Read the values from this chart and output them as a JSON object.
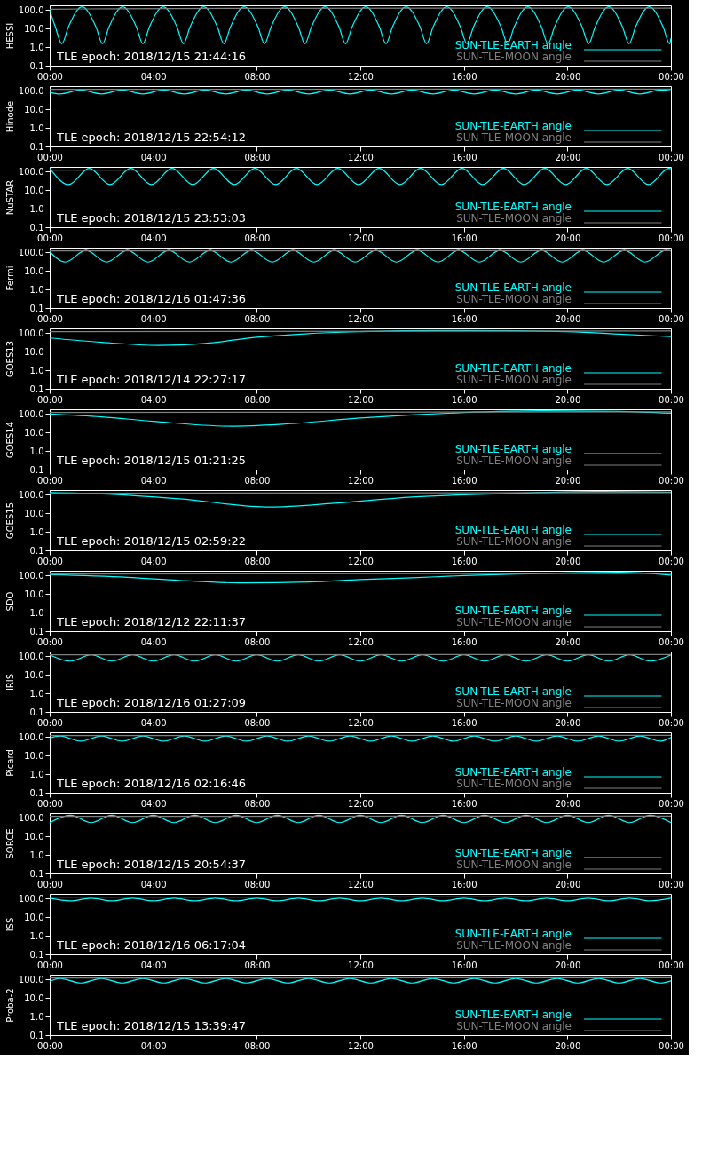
{
  "chart_data": [
    {
      "type": "line",
      "ylabel": "HESSI",
      "annotations": [
        "TLE epoch: 2018/12/15 21:44:16"
      ],
      "log": true,
      "grid": false,
      "legend": "bottom right",
      "xlim": [
        0,
        24
      ],
      "ylim": [
        0.1,
        180
      ],
      "xticks": [
        {
          "value": 0,
          "label": "00:00"
        },
        {
          "value": 4,
          "label": "04:00"
        },
        {
          "value": 8,
          "label": "08:00"
        },
        {
          "value": 12,
          "label": "12:00"
        },
        {
          "value": 16,
          "label": "16:00"
        },
        {
          "value": 20,
          "label": "20:00"
        },
        {
          "value": 24,
          "label": "00:00"
        }
      ],
      "yticks": [
        {
          "value": 0.1,
          "label": "0.1"
        },
        {
          "value": 1,
          "label": "1.0"
        },
        {
          "value": 10,
          "label": "10.0"
        },
        {
          "value": 100,
          "label": "100.0"
        }
      ],
      "x": [
        0,
        0.22,
        0.47,
        0.72,
        1.25,
        1.79,
        2.04,
        2.29,
        2.82,
        3.35,
        3.6,
        3.85,
        4.38,
        4.92,
        5.17,
        5.42,
        5.95,
        6.48,
        6.73,
        6.98,
        7.51,
        8.05,
        8.3,
        8.55,
        9.08,
        9.61,
        9.86,
        10.11,
        10.64,
        11.18,
        11.43,
        11.68,
        12.21,
        12.74,
        12.99,
        13.24,
        13.77,
        14.31,
        14.56,
        14.81,
        15.34,
        15.87,
        16.12,
        16.37,
        16.9,
        17.44,
        17.69,
        17.94,
        18.47,
        19.0,
        19.25,
        19.5,
        20.03,
        20.57,
        20.82,
        21.07,
        21.6,
        22.13,
        22.38,
        22.63,
        23.16,
        23.7,
        23.95,
        24
      ],
      "series": [
        {
          "name": "SUN-TLE-EARTH angle",
          "color": "#00ffff",
          "values": [
            100,
            12,
            1.5,
            12,
            150,
            12,
            1.5,
            12,
            150,
            12,
            1.5,
            12,
            150,
            12,
            1.5,
            12,
            150,
            12,
            1.5,
            12,
            150,
            12,
            1.5,
            12,
            150,
            12,
            1.5,
            12,
            150,
            12,
            1.5,
            12,
            150,
            12,
            1.5,
            12,
            150,
            12,
            1.5,
            12,
            150,
            12,
            1.5,
            12,
            150,
            12,
            1.5,
            12,
            150,
            12,
            1.5,
            12,
            150,
            12,
            1.5,
            12,
            150,
            12,
            1.5,
            12,
            150,
            12,
            1.5,
            3
          ]
        },
        {
          "name": "SUN-TLE-MOON angle",
          "color": "#808080",
          "x": [
            0,
            2.5,
            8.5,
            24
          ],
          "values": [
            112,
            118,
            124,
            128
          ]
        }
      ]
    },
    {
      "type": "line",
      "ylabel": "Hinode",
      "annotations": [
        "TLE epoch: 2018/12/15 22:54:12"
      ],
      "log": true,
      "grid": false,
      "legend": "bottom right",
      "xlim": [
        0,
        24
      ],
      "ylim": [
        0.1,
        180
      ],
      "xticks": [
        {
          "value": 0,
          "label": "00:00"
        },
        {
          "value": 4,
          "label": "04:00"
        },
        {
          "value": 8,
          "label": "08:00"
        },
        {
          "value": 12,
          "label": "12:00"
        },
        {
          "value": 16,
          "label": "16:00"
        },
        {
          "value": 20,
          "label": "20:00"
        },
        {
          "value": 24,
          "label": "00:00"
        }
      ],
      "yticks": [
        {
          "value": 0.1,
          "label": "0.1"
        },
        {
          "value": 1,
          "label": "1.0"
        },
        {
          "value": 10,
          "label": "10.0"
        },
        {
          "value": 100,
          "label": "100.0"
        }
      ],
      "x": [
        0,
        0.4,
        1.2,
        2,
        2.8,
        3.6,
        4.4,
        5.2,
        6,
        6.8,
        7.6,
        8.4,
        9.2,
        10,
        10.8,
        11.6,
        12.4,
        13.2,
        14,
        14.8,
        15.6,
        16.4,
        17.2,
        18,
        18.8,
        19.6,
        20.4,
        21.2,
        22,
        22.8,
        23.6,
        24
      ],
      "series": [
        {
          "name": "SUN-TLE-EARTH angle",
          "color": "#00ffff",
          "values": [
            85,
            68,
            110,
            68,
            110,
            68,
            110,
            68,
            110,
            68,
            110,
            68,
            110,
            68,
            110,
            68,
            110,
            68,
            110,
            68,
            110,
            68,
            110,
            68,
            110,
            68,
            110,
            68,
            110,
            68,
            110,
            100
          ]
        },
        {
          "name": "SUN-TLE-MOON angle",
          "color": "#808080",
          "x": [
            0,
            24
          ],
          "values": [
            120,
            125
          ]
        }
      ]
    },
    {
      "type": "line",
      "ylabel": "NuSTAR",
      "annotations": [
        "TLE epoch: 2018/12/15 23:53:03"
      ],
      "log": true,
      "grid": false,
      "legend": "bottom right",
      "xlim": [
        0,
        24
      ],
      "ylim": [
        0.1,
        180
      ],
      "xticks": [
        {
          "value": 0,
          "label": "00:00"
        },
        {
          "value": 4,
          "label": "04:00"
        },
        {
          "value": 8,
          "label": "08:00"
        },
        {
          "value": 12,
          "label": "12:00"
        },
        {
          "value": 16,
          "label": "16:00"
        },
        {
          "value": 20,
          "label": "20:00"
        },
        {
          "value": 24,
          "label": "00:00"
        }
      ],
      "yticks": [
        {
          "value": 0.1,
          "label": "0.1"
        },
        {
          "value": 1,
          "label": "1.0"
        },
        {
          "value": 10,
          "label": "10.0"
        },
        {
          "value": 100,
          "label": "100.0"
        }
      ],
      "x": [
        0,
        0.73,
        1.53,
        2.33,
        3.13,
        3.93,
        4.73,
        5.53,
        6.33,
        7.13,
        7.93,
        8.73,
        9.53,
        10.33,
        11.13,
        11.93,
        12.73,
        13.53,
        14.33,
        15.13,
        15.93,
        16.73,
        17.53,
        18.33,
        19.13,
        19.93,
        20.73,
        21.53,
        22.33,
        23.13,
        23.93,
        24
      ],
      "series": [
        {
          "name": "SUN-TLE-EARTH angle",
          "color": "#00ffff",
          "values": [
            150,
            20,
            150,
            20,
            150,
            20,
            150,
            20,
            150,
            20,
            150,
            20,
            150,
            20,
            150,
            20,
            150,
            20,
            150,
            20,
            150,
            20,
            150,
            20,
            150,
            20,
            150,
            20,
            150,
            20,
            150,
            145
          ]
        },
        {
          "name": "SUN-TLE-MOON angle",
          "color": "#808080",
          "x": [
            0,
            24
          ],
          "values": [
            120,
            125
          ]
        }
      ]
    },
    {
      "type": "line",
      "ylabel": "Fermi",
      "annotations": [
        "TLE epoch: 2018/12/16 01:47:36"
      ],
      "log": true,
      "grid": false,
      "legend": "bottom right",
      "xlim": [
        0,
        24
      ],
      "ylim": [
        0.1,
        180
      ],
      "xticks": [
        {
          "value": 0,
          "label": "00:00"
        },
        {
          "value": 4,
          "label": "04:00"
        },
        {
          "value": 8,
          "label": "08:00"
        },
        {
          "value": 12,
          "label": "12:00"
        },
        {
          "value": 16,
          "label": "16:00"
        },
        {
          "value": 20,
          "label": "20:00"
        },
        {
          "value": 24,
          "label": "00:00"
        }
      ],
      "yticks": [
        {
          "value": 0.1,
          "label": "0.1"
        },
        {
          "value": 1,
          "label": "1.0"
        },
        {
          "value": 10,
          "label": "10.0"
        },
        {
          "value": 100,
          "label": "100.0"
        }
      ],
      "x": [
        0,
        0.6,
        1.4,
        2.2,
        3,
        3.8,
        4.6,
        5.4,
        6.2,
        7,
        7.8,
        8.6,
        9.4,
        10.2,
        11,
        11.8,
        12.6,
        13.4,
        14.2,
        15,
        15.8,
        16.6,
        17.4,
        18.2,
        19,
        19.8,
        20.6,
        21.4,
        22.2,
        23,
        23.8,
        24
      ],
      "series": [
        {
          "name": "SUN-TLE-EARTH angle",
          "color": "#00ffff",
          "values": [
            110,
            30,
            130,
            30,
            130,
            30,
            130,
            30,
            130,
            30,
            130,
            30,
            130,
            30,
            130,
            30,
            130,
            30,
            130,
            30,
            130,
            30,
            130,
            30,
            130,
            30,
            130,
            30,
            130,
            30,
            130,
            120
          ]
        },
        {
          "name": "SUN-TLE-MOON angle",
          "color": "#808080",
          "x": [
            0,
            24
          ],
          "values": [
            120,
            125
          ]
        }
      ]
    },
    {
      "type": "line",
      "ylabel": "GOES13",
      "annotations": [
        "TLE epoch: 2018/12/14 22:27:17"
      ],
      "log": true,
      "grid": false,
      "legend": "bottom right",
      "xlim": [
        0,
        24
      ],
      "ylim": [
        0.1,
        180
      ],
      "xticks": [
        {
          "value": 0,
          "label": "00:00"
        },
        {
          "value": 4,
          "label": "04:00"
        },
        {
          "value": 8,
          "label": "08:00"
        },
        {
          "value": 12,
          "label": "12:00"
        },
        {
          "value": 16,
          "label": "16:00"
        },
        {
          "value": 20,
          "label": "20:00"
        },
        {
          "value": 24,
          "label": "00:00"
        }
      ],
      "yticks": [
        {
          "value": 0.1,
          "label": "0.1"
        },
        {
          "value": 1,
          "label": "1.0"
        },
        {
          "value": 10,
          "label": "10.0"
        },
        {
          "value": 100,
          "label": "100.0"
        }
      ],
      "x": [
        0,
        2,
        4.2,
        6,
        8,
        10,
        12,
        15,
        18,
        20,
        22,
        24
      ],
      "series": [
        {
          "name": "SUN-TLE-EARTH angle",
          "color": "#00ffff",
          "values": [
            55,
            32,
            22,
            28,
            60,
            95,
            120,
            140,
            135,
            120,
            90,
            65
          ]
        },
        {
          "name": "SUN-TLE-MOON angle",
          "color": "#808080",
          "x": [
            0,
            24
          ],
          "values": [
            120,
            130
          ]
        }
      ]
    },
    {
      "type": "line",
      "ylabel": "GOES14",
      "annotations": [
        "TLE epoch: 2018/12/15 01:21:25"
      ],
      "log": true,
      "grid": false,
      "legend": "bottom right",
      "xlim": [
        0,
        24
      ],
      "ylim": [
        0.1,
        180
      ],
      "xticks": [
        {
          "value": 0,
          "label": "00:00"
        },
        {
          "value": 4,
          "label": "04:00"
        },
        {
          "value": 8,
          "label": "08:00"
        },
        {
          "value": 12,
          "label": "12:00"
        },
        {
          "value": 16,
          "label": "16:00"
        },
        {
          "value": 20,
          "label": "20:00"
        },
        {
          "value": 24,
          "label": "00:00"
        }
      ],
      "yticks": [
        {
          "value": 0.1,
          "label": "0.1"
        },
        {
          "value": 1,
          "label": "1.0"
        },
        {
          "value": 10,
          "label": "10.0"
        },
        {
          "value": 100,
          "label": "100.0"
        }
      ],
      "x": [
        0,
        2,
        4,
        7,
        9,
        12,
        14,
        16,
        19,
        22,
        24
      ],
      "series": [
        {
          "name": "SUN-TLE-EARTH angle",
          "color": "#00ffff",
          "values": [
            100,
            70,
            40,
            22,
            28,
            60,
            90,
            120,
            150,
            140,
            110
          ]
        },
        {
          "name": "SUN-TLE-MOON angle",
          "color": "#808080",
          "x": [
            0,
            24
          ],
          "values": [
            120,
            130
          ]
        }
      ]
    },
    {
      "type": "line",
      "ylabel": "GOES15",
      "annotations": [
        "TLE epoch: 2018/12/15 02:59:22"
      ],
      "log": true,
      "grid": false,
      "legend": "bottom right",
      "xlim": [
        0,
        24
      ],
      "ylim": [
        0.1,
        180
      ],
      "xticks": [
        {
          "value": 0,
          "label": "00:00"
        },
        {
          "value": 4,
          "label": "04:00"
        },
        {
          "value": 8,
          "label": "08:00"
        },
        {
          "value": 12,
          "label": "12:00"
        },
        {
          "value": 16,
          "label": "16:00"
        },
        {
          "value": 20,
          "label": "20:00"
        },
        {
          "value": 24,
          "label": "00:00"
        }
      ],
      "yticks": [
        {
          "value": 0.1,
          "label": "0.1"
        },
        {
          "value": 1,
          "label": "1.0"
        },
        {
          "value": 10,
          "label": "10.0"
        },
        {
          "value": 100,
          "label": "100.0"
        }
      ],
      "x": [
        0,
        2,
        5,
        8.5,
        11,
        14,
        16,
        18,
        21,
        24
      ],
      "series": [
        {
          "name": "SUN-TLE-EARTH angle",
          "color": "#00ffff",
          "values": [
            130,
            110,
            60,
            22,
            35,
            75,
            100,
            120,
            150,
            140
          ]
        },
        {
          "name": "SUN-TLE-MOON angle",
          "color": "#808080",
          "x": [
            0,
            24
          ],
          "values": [
            120,
            130
          ]
        }
      ]
    },
    {
      "type": "line",
      "ylabel": "SDO",
      "annotations": [
        "TLE epoch: 2018/12/12 22:11:37"
      ],
      "log": true,
      "grid": false,
      "legend": "bottom right",
      "xlim": [
        0,
        24
      ],
      "ylim": [
        0.1,
        180
      ],
      "xticks": [
        {
          "value": 0,
          "label": "00:00"
        },
        {
          "value": 4,
          "label": "04:00"
        },
        {
          "value": 8,
          "label": "08:00"
        },
        {
          "value": 12,
          "label": "12:00"
        },
        {
          "value": 16,
          "label": "16:00"
        },
        {
          "value": 20,
          "label": "20:00"
        },
        {
          "value": 24,
          "label": "00:00"
        }
      ],
      "yticks": [
        {
          "value": 0.1,
          "label": "0.1"
        },
        {
          "value": 1,
          "label": "1.0"
        },
        {
          "value": 10,
          "label": "10.0"
        },
        {
          "value": 100,
          "label": "100.0"
        }
      ],
      "x": [
        0,
        3,
        5,
        7.5,
        10,
        12,
        14,
        16,
        18,
        20,
        22,
        24
      ],
      "series": [
        {
          "name": "SUN-TLE-EARTH angle",
          "color": "#00ffff",
          "values": [
            110,
            80,
            55,
            40,
            45,
            60,
            75,
            100,
            120,
            140,
            150,
            105
          ]
        },
        {
          "name": "SUN-TLE-MOON angle",
          "color": "#808080",
          "x": [
            0,
            24
          ],
          "values": [
            120,
            130
          ]
        }
      ]
    },
    {
      "type": "line",
      "ylabel": "IRIS",
      "annotations": [
        "TLE epoch: 2018/12/16 01:27:09"
      ],
      "log": true,
      "grid": false,
      "legend": "bottom right",
      "xlim": [
        0,
        24
      ],
      "ylim": [
        0.1,
        180
      ],
      "xticks": [
        {
          "value": 0,
          "label": "00:00"
        },
        {
          "value": 4,
          "label": "04:00"
        },
        {
          "value": 8,
          "label": "08:00"
        },
        {
          "value": 12,
          "label": "12:00"
        },
        {
          "value": 16,
          "label": "16:00"
        },
        {
          "value": 20,
          "label": "20:00"
        },
        {
          "value": 24,
          "label": "00:00"
        }
      ],
      "yticks": [
        {
          "value": 0.1,
          "label": "0.1"
        },
        {
          "value": 1,
          "label": "1.0"
        },
        {
          "value": 10,
          "label": "10.0"
        },
        {
          "value": 100,
          "label": "100.0"
        }
      ],
      "x": [
        0,
        0.8,
        1.6,
        2.4,
        3.2,
        4,
        4.8,
        5.6,
        6.4,
        7.2,
        8,
        8.8,
        9.6,
        10.4,
        11.2,
        12,
        12.8,
        13.6,
        14.4,
        15.2,
        16,
        16.8,
        17.6,
        18.4,
        19.2,
        20,
        20.8,
        21.6,
        22.4,
        23.2,
        24
      ],
      "series": [
        {
          "name": "SUN-TLE-EARTH angle",
          "color": "#00ffff",
          "values": [
            120,
            55,
            120,
            55,
            120,
            55,
            120,
            55,
            120,
            55,
            120,
            55,
            120,
            55,
            120,
            55,
            120,
            55,
            120,
            55,
            120,
            55,
            120,
            55,
            120,
            55,
            120,
            55,
            120,
            55,
            120
          ]
        },
        {
          "name": "SUN-TLE-MOON angle",
          "color": "#808080",
          "x": [
            0,
            24
          ],
          "values": [
            120,
            125
          ]
        }
      ]
    },
    {
      "type": "line",
      "ylabel": "Picard",
      "annotations": [
        "TLE epoch: 2018/12/16 02:16:46"
      ],
      "log": true,
      "grid": false,
      "legend": "bottom right",
      "xlim": [
        0,
        24
      ],
      "ylim": [
        0.1,
        180
      ],
      "xticks": [
        {
          "value": 0,
          "label": "00:00"
        },
        {
          "value": 4,
          "label": "04:00"
        },
        {
          "value": 8,
          "label": "08:00"
        },
        {
          "value": 12,
          "label": "12:00"
        },
        {
          "value": 16,
          "label": "16:00"
        },
        {
          "value": 20,
          "label": "20:00"
        },
        {
          "value": 24,
          "label": "00:00"
        }
      ],
      "yticks": [
        {
          "value": 0.1,
          "label": "0.1"
        },
        {
          "value": 1,
          "label": "1.0"
        },
        {
          "value": 10,
          "label": "10.0"
        },
        {
          "value": 100,
          "label": "100.0"
        }
      ],
      "x": [
        0,
        0.4,
        1.2,
        2,
        2.8,
        3.6,
        4.4,
        5.2,
        6,
        6.8,
        7.6,
        8.4,
        9.2,
        10,
        10.8,
        11.6,
        12.4,
        13.2,
        14,
        14.8,
        15.6,
        16.4,
        17.2,
        18,
        18.8,
        19.6,
        20.4,
        21.2,
        22,
        22.8,
        23.6,
        24
      ],
      "series": [
        {
          "name": "SUN-TLE-EARTH angle",
          "color": "#00ffff",
          "values": [
            90,
            115,
            60,
            115,
            60,
            115,
            60,
            115,
            60,
            115,
            60,
            115,
            60,
            115,
            60,
            115,
            60,
            115,
            60,
            115,
            60,
            115,
            60,
            115,
            60,
            115,
            60,
            115,
            60,
            115,
            60,
            95
          ]
        },
        {
          "name": "SUN-TLE-MOON angle",
          "color": "#808080",
          "x": [
            0,
            24
          ],
          "values": [
            120,
            125
          ]
        }
      ]
    },
    {
      "type": "line",
      "ylabel": "SORCE",
      "annotations": [
        "TLE epoch: 2018/12/15 20:54:37"
      ],
      "log": true,
      "grid": false,
      "legend": "bottom right",
      "xlim": [
        0,
        24
      ],
      "ylim": [
        0.1,
        180
      ],
      "xticks": [
        {
          "value": 0,
          "label": "00:00"
        },
        {
          "value": 4,
          "label": "04:00"
        },
        {
          "value": 8,
          "label": "08:00"
        },
        {
          "value": 12,
          "label": "12:00"
        },
        {
          "value": 16,
          "label": "16:00"
        },
        {
          "value": 20,
          "label": "20:00"
        },
        {
          "value": 24,
          "label": "00:00"
        }
      ],
      "yticks": [
        {
          "value": 0.1,
          "label": "0.1"
        },
        {
          "value": 1,
          "label": "1.0"
        },
        {
          "value": 10,
          "label": "10.0"
        },
        {
          "value": 100,
          "label": "100.0"
        }
      ],
      "x": [
        0,
        0.8,
        1.6,
        2.4,
        3.2,
        4,
        4.8,
        5.6,
        6.4,
        7.2,
        8,
        8.8,
        9.6,
        10.4,
        11.2,
        12,
        12.8,
        13.6,
        14.4,
        15.2,
        16,
        16.8,
        17.6,
        18.4,
        19.2,
        20,
        20.8,
        21.6,
        22.4,
        23.2,
        24
      ],
      "series": [
        {
          "name": "SUN-TLE-EARTH angle",
          "color": "#00ffff",
          "values": [
            55,
            140,
            55,
            140,
            55,
            140,
            55,
            140,
            55,
            140,
            55,
            140,
            55,
            140,
            55,
            140,
            55,
            140,
            55,
            140,
            55,
            140,
            55,
            140,
            55,
            140,
            55,
            140,
            55,
            140,
            55
          ]
        },
        {
          "name": "SUN-TLE-MOON angle",
          "color": "#808080",
          "x": [
            0,
            24
          ],
          "values": [
            120,
            125
          ]
        }
      ]
    },
    {
      "type": "line",
      "ylabel": "ISS",
      "annotations": [
        "TLE epoch: 2018/12/16 06:17:04"
      ],
      "log": true,
      "grid": false,
      "legend": "bottom right",
      "xlim": [
        0,
        24
      ],
      "ylim": [
        0.1,
        180
      ],
      "xticks": [
        {
          "value": 0,
          "label": "00:00"
        },
        {
          "value": 4,
          "label": "04:00"
        },
        {
          "value": 8,
          "label": "08:00"
        },
        {
          "value": 12,
          "label": "12:00"
        },
        {
          "value": 16,
          "label": "16:00"
        },
        {
          "value": 20,
          "label": "20:00"
        },
        {
          "value": 24,
          "label": "00:00"
        }
      ],
      "yticks": [
        {
          "value": 0.1,
          "label": "0.1"
        },
        {
          "value": 1,
          "label": "1.0"
        },
        {
          "value": 10,
          "label": "10.0"
        },
        {
          "value": 100,
          "label": "100.0"
        }
      ],
      "x": [
        0,
        0.8,
        1.6,
        2.4,
        3.2,
        4,
        4.8,
        5.6,
        6.4,
        7.2,
        8,
        8.8,
        9.6,
        10.4,
        11.2,
        12,
        12.8,
        13.6,
        14.4,
        15.2,
        16,
        16.8,
        17.6,
        18.4,
        19.2,
        20,
        20.8,
        21.6,
        22.4,
        23.2,
        24
      ],
      "series": [
        {
          "name": "SUN-TLE-EARTH angle",
          "color": "#00ffff",
          "values": [
            105,
            75,
            105,
            75,
            105,
            75,
            105,
            75,
            105,
            75,
            105,
            75,
            105,
            75,
            105,
            75,
            105,
            75,
            105,
            75,
            105,
            75,
            105,
            75,
            105,
            75,
            105,
            75,
            105,
            75,
            105
          ]
        },
        {
          "name": "SUN-TLE-MOON angle",
          "color": "#808080",
          "x": [
            0,
            24
          ],
          "values": [
            120,
            125
          ]
        }
      ]
    },
    {
      "type": "line",
      "ylabel": "Proba-2",
      "annotations": [
        "TLE epoch: 2018/12/15 13:39:47"
      ],
      "log": true,
      "grid": false,
      "legend": "bottom right",
      "xlim": [
        0,
        24
      ],
      "ylim": [
        0.1,
        180
      ],
      "xticks": [
        {
          "value": 0,
          "label": "00:00"
        },
        {
          "value": 4,
          "label": "04:00"
        },
        {
          "value": 8,
          "label": "08:00"
        },
        {
          "value": 12,
          "label": "12:00"
        },
        {
          "value": 16,
          "label": "16:00"
        },
        {
          "value": 20,
          "label": "20:00"
        },
        {
          "value": 24,
          "label": "00:00"
        }
      ],
      "yticks": [
        {
          "value": 0.1,
          "label": "0.1"
        },
        {
          "value": 1,
          "label": "1.0"
        },
        {
          "value": 10,
          "label": "10.0"
        },
        {
          "value": 100,
          "label": "100.0"
        }
      ],
      "x": [
        0,
        0.4,
        1.2,
        2,
        2.8,
        3.6,
        4.4,
        5.2,
        6,
        6.8,
        7.6,
        8.4,
        9.2,
        10,
        10.8,
        11.6,
        12.4,
        13.2,
        14,
        14.8,
        15.6,
        16.4,
        17.2,
        18,
        18.8,
        19.6,
        20.4,
        21.2,
        22,
        22.8,
        23.6,
        24
      ],
      "series": [
        {
          "name": "SUN-TLE-EARTH angle",
          "color": "#00ffff",
          "values": [
            80,
            115,
            65,
            115,
            65,
            115,
            65,
            115,
            65,
            115,
            65,
            115,
            65,
            115,
            65,
            115,
            65,
            115,
            65,
            115,
            65,
            115,
            65,
            115,
            65,
            115,
            65,
            115,
            65,
            115,
            65,
            85
          ]
        },
        {
          "name": "SUN-TLE-MOON angle",
          "color": "#808080",
          "x": [
            0,
            24
          ],
          "values": [
            120,
            125
          ]
        }
      ]
    }
  ]
}
